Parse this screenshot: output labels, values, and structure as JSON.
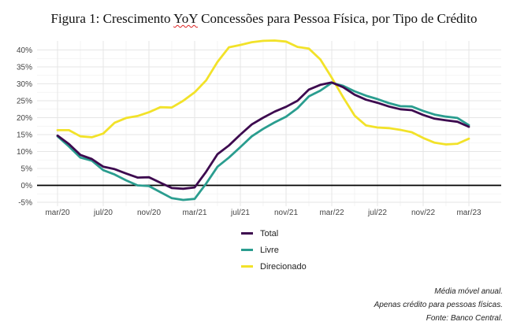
{
  "figure": {
    "title_prefix": "Figura 1: Crescimento ",
    "title_flagged": "YoY",
    "title_suffix": " Concessões para Pessoa Física, por Tipo de Crédito"
  },
  "chart_data": {
    "type": "line",
    "title": "Figura 1: Crescimento YoY Concessões para Pessoa Física, por Tipo de Crédito",
    "x_tick_labels": [
      "mar/20",
      "jul/20",
      "nov/20",
      "mar/21",
      "jul/21",
      "nov/21",
      "mar/22",
      "jul/22",
      "nov/22",
      "mar/23"
    ],
    "y_tick_labels": [
      "-5%",
      "0%",
      "5%",
      "10%",
      "15%",
      "20%",
      "25%",
      "30%",
      "35%",
      "40%"
    ],
    "ylim": [
      -5,
      42
    ],
    "grid": true,
    "legend_position": "bottom",
    "x": [
      "mar/20",
      "abr/20",
      "mai/20",
      "jun/20",
      "jul/20",
      "ago/20",
      "set/20",
      "out/20",
      "nov/20",
      "dez/20",
      "jan/21",
      "fev/21",
      "mar/21",
      "abr/21",
      "mai/21",
      "jun/21",
      "jul/21",
      "ago/21",
      "set/21",
      "out/21",
      "nov/21",
      "dez/21",
      "jan/22",
      "fev/22",
      "mar/22",
      "abr/22",
      "mai/22",
      "jun/22",
      "jul/22",
      "ago/22",
      "set/22",
      "out/22",
      "nov/22",
      "dez/22",
      "jan/23",
      "fev/23",
      "mar/23"
    ],
    "series": [
      {
        "name": "Total",
        "color": "#3d0a4f",
        "values": [
          14.7,
          12.2,
          9.0,
          7.8,
          5.5,
          4.8,
          3.5,
          2.3,
          2.4,
          0.8,
          -0.8,
          -1.0,
          -0.6,
          4.0,
          9.2,
          11.8,
          15.0,
          18.0,
          20.0,
          21.8,
          23.2,
          25.0,
          28.3,
          29.7,
          30.4,
          29.0,
          26.8,
          25.3,
          24.4,
          23.3,
          22.5,
          22.2,
          20.8,
          19.7,
          19.2,
          18.8,
          17.3
        ]
      },
      {
        "name": "Livre",
        "color": "#2a9d8f",
        "values": [
          14.5,
          11.5,
          8.2,
          7.3,
          4.5,
          3.2,
          1.5,
          0.0,
          -0.2,
          -2.0,
          -3.8,
          -4.3,
          -4.0,
          0.5,
          5.5,
          8.2,
          11.3,
          14.5,
          16.7,
          18.6,
          20.3,
          22.8,
          26.3,
          28.0,
          30.3,
          29.4,
          27.8,
          26.5,
          25.5,
          24.3,
          23.4,
          23.3,
          22.0,
          20.9,
          20.3,
          19.9,
          17.8
        ]
      },
      {
        "name": "Direcionado",
        "color": "#f2e229",
        "values": [
          16.3,
          16.3,
          14.5,
          14.2,
          15.3,
          18.5,
          19.9,
          20.5,
          21.6,
          23.1,
          23.0,
          25.0,
          27.5,
          31.0,
          36.5,
          40.8,
          41.5,
          42.3,
          42.7,
          42.8,
          42.5,
          40.9,
          40.4,
          37.2,
          31.8,
          26.0,
          20.6,
          17.7,
          17.1,
          16.9,
          16.4,
          15.7,
          14.0,
          12.6,
          12.1,
          12.3,
          13.8
        ]
      }
    ]
  },
  "notes": [
    "Média móvel anual.",
    "Apenas crédito para pessoas físicas.",
    "Fonte: Banco Central."
  ]
}
